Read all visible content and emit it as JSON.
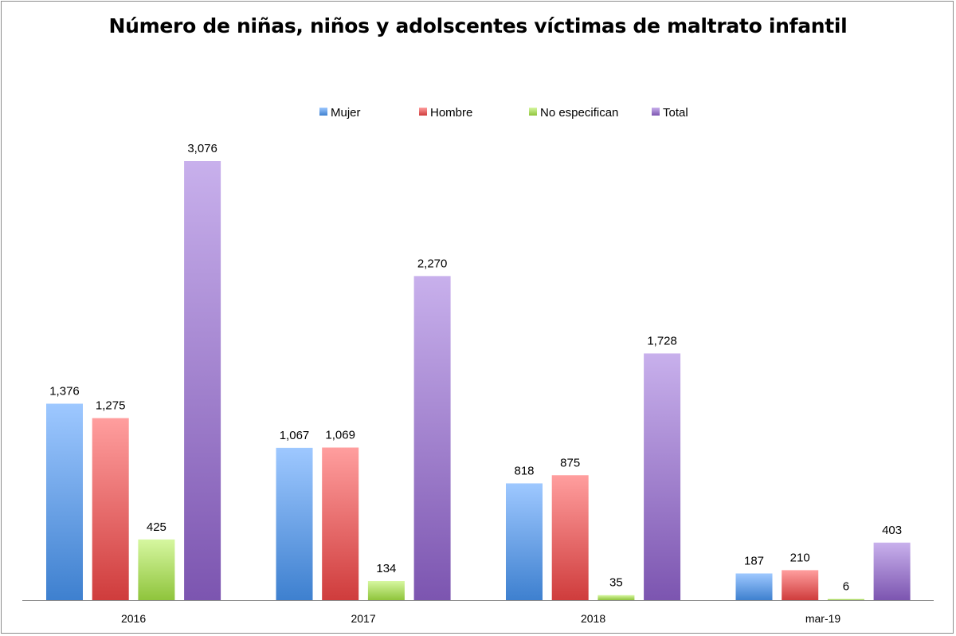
{
  "chart_data": {
    "type": "bar",
    "title": "Número de niñas, niños y adolscentes víctimas de maltrato infantil",
    "xlabel": "",
    "ylabel": "",
    "categories": [
      "2016",
      "2017",
      "2018",
      "mar-19"
    ],
    "ylim": [
      0,
      3350
    ],
    "grid": false,
    "legend_position": "top",
    "series": [
      {
        "name": "Mujer",
        "values": [
          1376,
          1067,
          818,
          187
        ],
        "labels": [
          "1,376",
          "1,067",
          "818",
          "187"
        ],
        "color_light": "#9ec8ff",
        "color_dark": "#3e80cf"
      },
      {
        "name": "Hombre",
        "values": [
          1275,
          1069,
          875,
          210
        ],
        "labels": [
          "1,275",
          "1,069",
          "875",
          "210"
        ],
        "color_light": "#ff9e9e",
        "color_dark": "#cf3c3c"
      },
      {
        "name": "No especifican",
        "values": [
          425,
          134,
          35,
          6
        ],
        "labels": [
          "425",
          "134",
          "35",
          "6"
        ],
        "color_light": "#d6f7a0",
        "color_dark": "#8fc43c"
      },
      {
        "name": "Total",
        "values": [
          3076,
          2270,
          1728,
          403
        ],
        "labels": [
          "3,076",
          "2,270",
          "1,728",
          "403"
        ],
        "color_light": "#c8b0ec",
        "color_dark": "#7c55b0"
      }
    ]
  }
}
